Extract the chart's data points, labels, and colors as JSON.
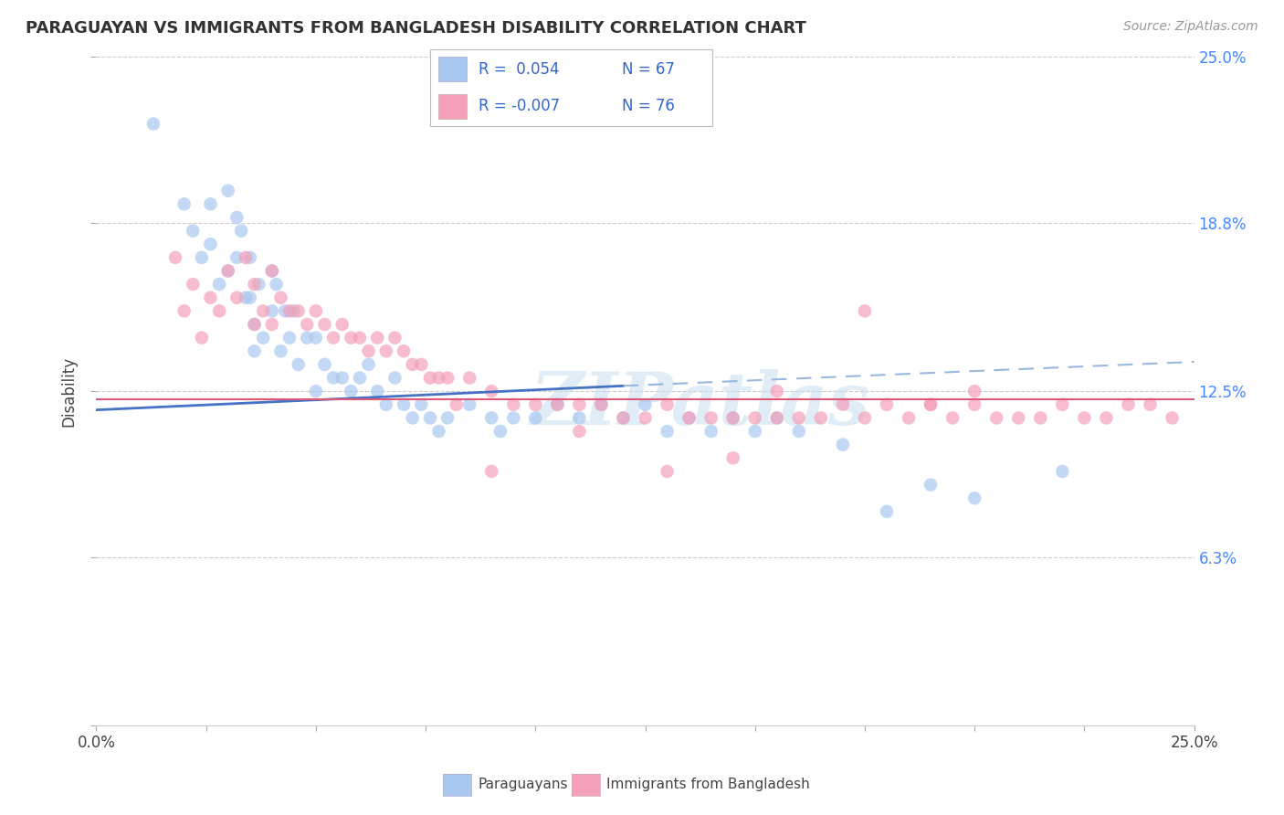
{
  "title": "PARAGUAYAN VS IMMIGRANTS FROM BANGLADESH DISABILITY CORRELATION CHART",
  "source": "Source: ZipAtlas.com",
  "ylabel": "Disability",
  "xmin": 0.0,
  "xmax": 0.25,
  "ymin": 0.0,
  "ymax": 0.25,
  "color_blue": "#a8c8f0",
  "color_pink": "#f4a0b8",
  "line_blue_solid": "#4472c4",
  "line_blue_dash": "#99b8e0",
  "line_pink": "#e05878",
  "watermark": "ZIPatlas",
  "blue_scatter_x": [
    0.013,
    0.02,
    0.022,
    0.024,
    0.026,
    0.026,
    0.028,
    0.03,
    0.03,
    0.032,
    0.032,
    0.033,
    0.034,
    0.035,
    0.035,
    0.036,
    0.036,
    0.037,
    0.038,
    0.04,
    0.04,
    0.041,
    0.042,
    0.043,
    0.044,
    0.045,
    0.046,
    0.048,
    0.05,
    0.05,
    0.052,
    0.054,
    0.056,
    0.058,
    0.06,
    0.062,
    0.064,
    0.066,
    0.068,
    0.07,
    0.072,
    0.074,
    0.076,
    0.078,
    0.08,
    0.085,
    0.09,
    0.092,
    0.095,
    0.1,
    0.105,
    0.11,
    0.115,
    0.12,
    0.125,
    0.13,
    0.135,
    0.14,
    0.145,
    0.15,
    0.155,
    0.16,
    0.17,
    0.18,
    0.19,
    0.2,
    0.22
  ],
  "blue_scatter_y": [
    0.225,
    0.195,
    0.185,
    0.175,
    0.195,
    0.18,
    0.165,
    0.2,
    0.17,
    0.19,
    0.175,
    0.185,
    0.16,
    0.175,
    0.16,
    0.15,
    0.14,
    0.165,
    0.145,
    0.17,
    0.155,
    0.165,
    0.14,
    0.155,
    0.145,
    0.155,
    0.135,
    0.145,
    0.145,
    0.125,
    0.135,
    0.13,
    0.13,
    0.125,
    0.13,
    0.135,
    0.125,
    0.12,
    0.13,
    0.12,
    0.115,
    0.12,
    0.115,
    0.11,
    0.115,
    0.12,
    0.115,
    0.11,
    0.115,
    0.115,
    0.12,
    0.115,
    0.12,
    0.115,
    0.12,
    0.11,
    0.115,
    0.11,
    0.115,
    0.11,
    0.115,
    0.11,
    0.105,
    0.08,
    0.09,
    0.085,
    0.095
  ],
  "pink_scatter_x": [
    0.018,
    0.02,
    0.022,
    0.024,
    0.026,
    0.028,
    0.03,
    0.032,
    0.034,
    0.036,
    0.036,
    0.038,
    0.04,
    0.04,
    0.042,
    0.044,
    0.046,
    0.048,
    0.05,
    0.052,
    0.054,
    0.056,
    0.058,
    0.06,
    0.062,
    0.064,
    0.066,
    0.068,
    0.07,
    0.072,
    0.074,
    0.076,
    0.078,
    0.08,
    0.082,
    0.085,
    0.09,
    0.095,
    0.1,
    0.105,
    0.11,
    0.115,
    0.12,
    0.125,
    0.13,
    0.135,
    0.14,
    0.145,
    0.15,
    0.155,
    0.16,
    0.165,
    0.17,
    0.175,
    0.18,
    0.185,
    0.19,
    0.195,
    0.2,
    0.205,
    0.21,
    0.215,
    0.22,
    0.225,
    0.23,
    0.235,
    0.24,
    0.245,
    0.175,
    0.19,
    0.2,
    0.155,
    0.145,
    0.13,
    0.11,
    0.09
  ],
  "pink_scatter_y": [
    0.175,
    0.155,
    0.165,
    0.145,
    0.16,
    0.155,
    0.17,
    0.16,
    0.175,
    0.165,
    0.15,
    0.155,
    0.17,
    0.15,
    0.16,
    0.155,
    0.155,
    0.15,
    0.155,
    0.15,
    0.145,
    0.15,
    0.145,
    0.145,
    0.14,
    0.145,
    0.14,
    0.145,
    0.14,
    0.135,
    0.135,
    0.13,
    0.13,
    0.13,
    0.12,
    0.13,
    0.125,
    0.12,
    0.12,
    0.12,
    0.12,
    0.12,
    0.115,
    0.115,
    0.12,
    0.115,
    0.115,
    0.115,
    0.115,
    0.115,
    0.115,
    0.115,
    0.12,
    0.115,
    0.12,
    0.115,
    0.12,
    0.115,
    0.12,
    0.115,
    0.115,
    0.115,
    0.12,
    0.115,
    0.115,
    0.12,
    0.12,
    0.115,
    0.155,
    0.12,
    0.125,
    0.125,
    0.1,
    0.095,
    0.11,
    0.095
  ],
  "blue_line_x0": 0.0,
  "blue_line_x_split": 0.12,
  "blue_line_x1": 0.25,
  "blue_line_y0": 0.118,
  "blue_line_y_split": 0.127,
  "blue_line_y1": 0.136,
  "pink_line_y0": 0.122,
  "pink_line_y1": 0.122
}
